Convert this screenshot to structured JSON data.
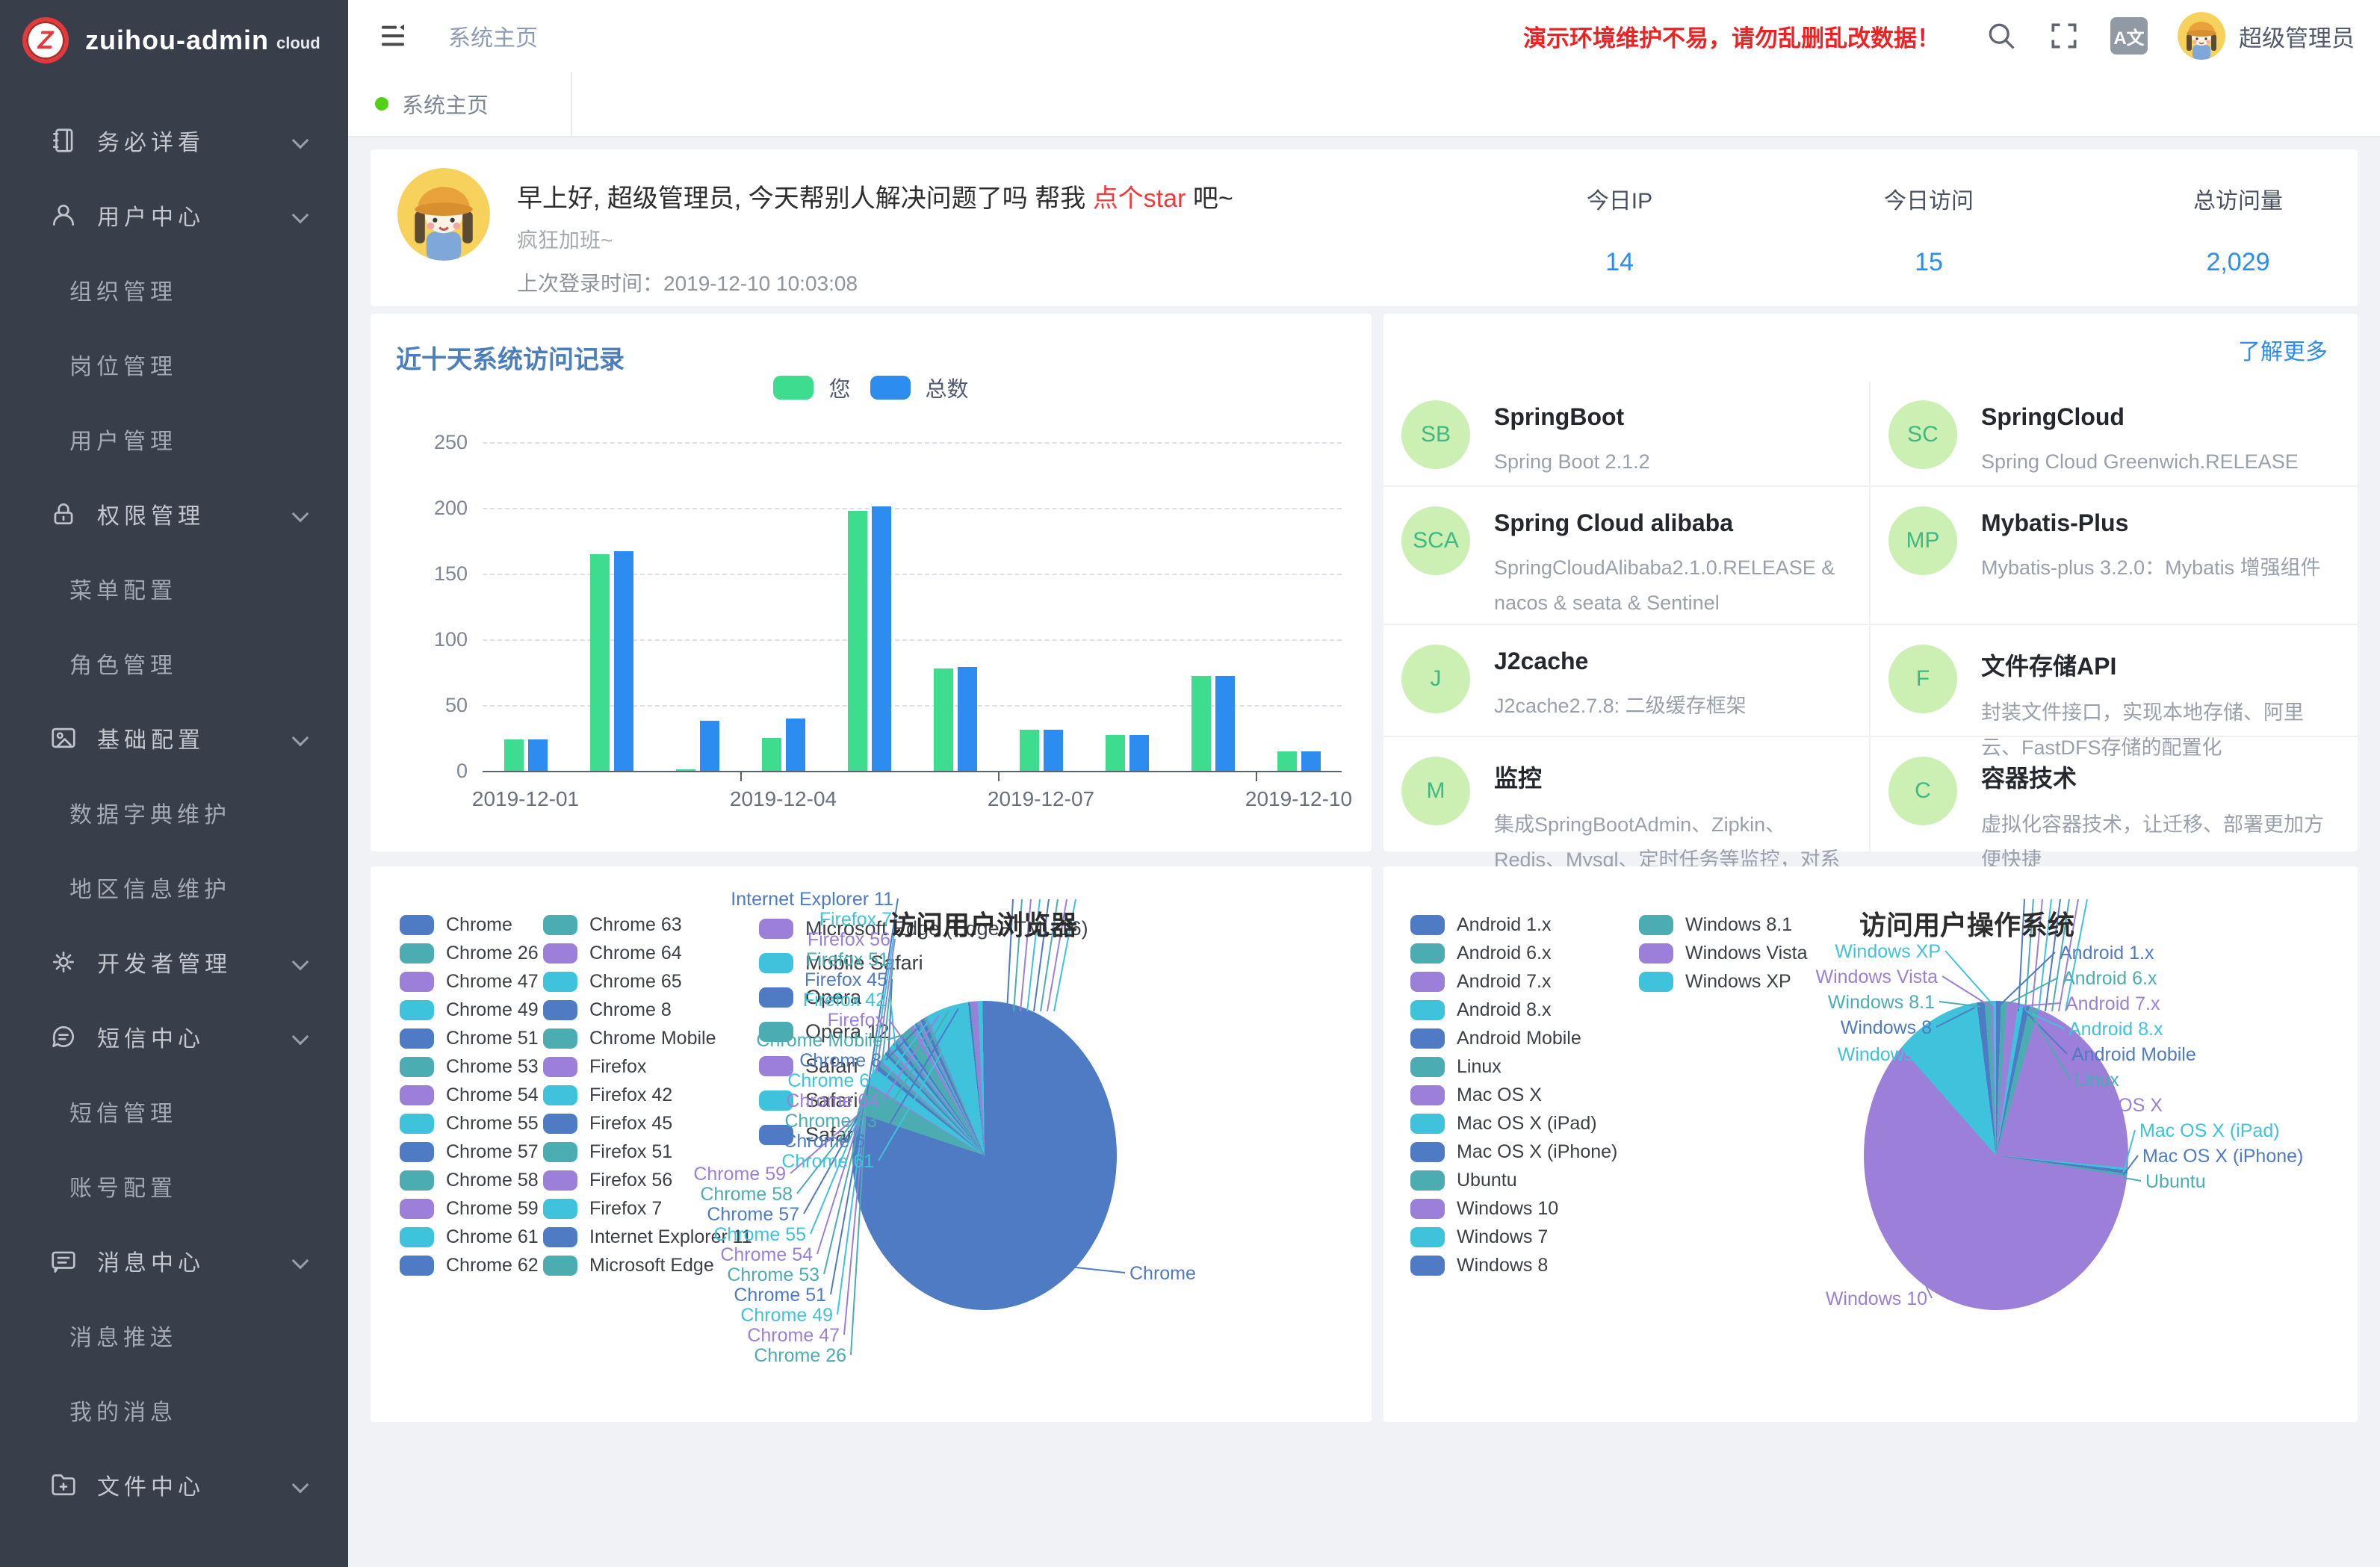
{
  "palette": [
    "#4e7bc4",
    "#4bacb2",
    "#9b7fd9",
    "#3fc3dc"
  ],
  "colors": {
    "accent_blue": "#2d8cf0",
    "bar_green": "#3ddc8e",
    "notice_red": "#ee2222",
    "chart_title_blue": "#4a7ebc",
    "sidebar_bg": "#383e4a",
    "page_bg": "#f0f2f5",
    "feature_avatar_bg": "#ccefb4",
    "feature_avatar_fg": "#41b883",
    "tab_dot_green": "#54d014"
  },
  "app": {
    "logo_letter": "Z",
    "name": "zuihou-admin",
    "suffix": "cloud"
  },
  "header": {
    "breadcrumb": "系统主页",
    "notice": "演示环境维护不易，请勿乱删乱改数据！",
    "translate": "A文",
    "username": "超级管理员"
  },
  "tab": {
    "label": "系统主页"
  },
  "sidebar": [
    {
      "type": "top",
      "icon": "notebook-icon",
      "label": "务必详看"
    },
    {
      "type": "top",
      "icon": "user-icon",
      "label": "用户中心"
    },
    {
      "type": "sub",
      "label": "组织管理"
    },
    {
      "type": "sub",
      "label": "岗位管理"
    },
    {
      "type": "sub",
      "label": "用户管理"
    },
    {
      "type": "top",
      "icon": "lock-icon",
      "label": "权限管理"
    },
    {
      "type": "sub",
      "label": "菜单配置"
    },
    {
      "type": "sub",
      "label": "角色管理"
    },
    {
      "type": "top",
      "icon": "picture-icon",
      "label": "基础配置"
    },
    {
      "type": "sub",
      "label": "数据字典维护"
    },
    {
      "type": "sub",
      "label": "地区信息维护"
    },
    {
      "type": "top",
      "icon": "gear-icon",
      "label": "开发者管理"
    },
    {
      "type": "top",
      "icon": "sms-icon",
      "label": "短信中心"
    },
    {
      "type": "sub",
      "label": "短信管理"
    },
    {
      "type": "sub",
      "label": "账号配置"
    },
    {
      "type": "top",
      "icon": "message-icon",
      "label": "消息中心"
    },
    {
      "type": "sub",
      "label": "消息推送"
    },
    {
      "type": "sub",
      "label": "我的消息"
    },
    {
      "type": "top",
      "icon": "folder-icon",
      "label": "文件中心"
    }
  ],
  "greeting": {
    "title_prefix": "早上好, 超级管理员, 今天帮别人解决问题了吗 帮我 ",
    "star_link": "点个star",
    "title_suffix": " 吧~",
    "subtitle": "疯狂加班~",
    "last_login_label": "上次登录时间：",
    "last_login_time": "2019-12-10 10:03:08"
  },
  "stats": [
    {
      "label": "今日IP",
      "value": "14"
    },
    {
      "label": "今日访问",
      "value": "15"
    },
    {
      "label": "总访问量",
      "value": "2,029"
    }
  ],
  "features": {
    "more": "了解更多",
    "items": [
      {
        "abbr": "SB",
        "title": "SpringBoot",
        "desc": "Spring Boot 2.1.2"
      },
      {
        "abbr": "SC",
        "title": "SpringCloud",
        "desc": "Spring Cloud Greenwich.RELEASE"
      },
      {
        "abbr": "SCA",
        "title": "Spring Cloud alibaba",
        "desc": "SpringCloudAlibaba2.1.0.RELEASE & nacos & seata & Sentinel"
      },
      {
        "abbr": "MP",
        "title": "Mybatis-Plus",
        "desc": "Mybatis-plus 3.2.0：Mybatis 增强组件"
      },
      {
        "abbr": "J",
        "title": "J2cache",
        "desc": "J2cache2.7.8: 二级缓存框架"
      },
      {
        "abbr": "F",
        "title": "文件存储API",
        "desc": "封装文件接口，实现本地存储、阿里云、FastDFS存储的配置化"
      },
      {
        "abbr": "M",
        "title": "监控",
        "desc": "集成SpringBootAdmin、Zipkin、Redis、Mysql、定时任务等监控，对系统进行全方位监控护航"
      },
      {
        "abbr": "C",
        "title": "容器技术",
        "desc": "虚拟化容器技术，让迁移、部署更加方便快捷"
      }
    ]
  },
  "chart_data": [
    {
      "type": "bar",
      "title": "近十天系统访问记录",
      "legend": [
        "您",
        "总数"
      ],
      "legend_position": "top-center",
      "grid": true,
      "categories": [
        "2019-12-01",
        "2019-12-02",
        "2019-12-03",
        "2019-12-04",
        "2019-12-05",
        "2019-12-06",
        "2019-12-07",
        "2019-12-08",
        "2019-12-09",
        "2019-12-10"
      ],
      "series": [
        {
          "name": "您",
          "color": "#3ddc8e",
          "values": [
            24,
            165,
            1,
            25,
            198,
            78,
            31,
            27,
            72,
            15
          ]
        },
        {
          "name": "总数",
          "color": "#2d8cf0",
          "values": [
            24,
            167,
            38,
            40,
            201,
            79,
            31,
            27,
            72,
            15
          ]
        }
      ],
      "ylim": [
        0,
        250
      ],
      "yticks": [
        0,
        50,
        100,
        150,
        200,
        250
      ],
      "xtick_labels": [
        "2019-12-01",
        "2019-12-04",
        "2019-12-07",
        "2019-12-10"
      ]
    },
    {
      "type": "pie",
      "title": "访问用户浏览器",
      "legend_position": "left",
      "items": [
        {
          "name": "Chrome",
          "value": 79.5
        },
        {
          "name": "Chrome 26",
          "value": 3.5
        },
        {
          "name": "Chrome 47",
          "value": 0.2
        },
        {
          "name": "Chrome 49",
          "value": 1.8
        },
        {
          "name": "Chrome 51",
          "value": 0.5
        },
        {
          "name": "Chrome 53",
          "value": 0.4
        },
        {
          "name": "Chrome 54",
          "value": 0.2
        },
        {
          "name": "Chrome 55",
          "value": 0.8
        },
        {
          "name": "Chrome 57",
          "value": 0.3
        },
        {
          "name": "Chrome 58",
          "value": 0.4
        },
        {
          "name": "Chrome 59",
          "value": 0.2
        },
        {
          "name": "Chrome 61",
          "value": 0.5
        },
        {
          "name": "Chrome 62",
          "value": 0.4
        },
        {
          "name": "Chrome 63",
          "value": 0.3
        },
        {
          "name": "Chrome 64",
          "value": 0.2
        },
        {
          "name": "Chrome 65",
          "value": 0.2
        },
        {
          "name": "Chrome 8",
          "value": 0.3
        },
        {
          "name": "Chrome Mobile",
          "value": 1.2
        },
        {
          "name": "Firefox",
          "value": 0.4
        },
        {
          "name": "Firefox 42",
          "value": 0.2
        },
        {
          "name": "Firefox 45",
          "value": 0.2
        },
        {
          "name": "Firefox 51",
          "value": 0.2
        },
        {
          "name": "Firefox 56",
          "value": 0.2
        },
        {
          "name": "Firefox 7",
          "value": 0.1
        },
        {
          "name": "Internet Explorer 11",
          "value": 0.4
        },
        {
          "name": "Microsoft Edge",
          "value": 0.3
        },
        {
          "name": "Microsoft Edge (EdgeHTML 16)",
          "value": 0.1
        },
        {
          "name": "Mobile Safari",
          "value": 4.5
        },
        {
          "name": "Opera",
          "value": 0.2
        },
        {
          "name": "Opera 12",
          "value": 0.1
        },
        {
          "name": "Safari",
          "value": 0.7
        },
        {
          "name": "Safari 11",
          "value": 0.5
        },
        {
          "name": "Safari 9",
          "value": 0.2
        }
      ],
      "callouts": {
        "upper_left": [
          "Internet Explorer 11",
          "Firefox 7",
          "Firefox 56",
          "Firefox 51",
          "Firefox 45",
          "Firefox 42",
          "Firefox",
          "Chrome Mobile",
          "Chrome 8",
          "Chrome 65",
          "Chrome 64",
          "Chrome 63",
          "Chrome 62",
          "Chrome 61"
        ],
        "lower_left": [
          "Chrome 59",
          "Chrome 58",
          "Chrome 57",
          "Chrome 55",
          "Chrome 54",
          "Chrome 53",
          "Chrome 51",
          "Chrome 49",
          "Chrome 47",
          "Chrome 26"
        ],
        "right": [
          "Chrome"
        ]
      }
    },
    {
      "type": "pie",
      "title": "访问用户操作系统",
      "legend_position": "left",
      "items": [
        {
          "name": "Android 1.x",
          "value": 0.5
        },
        {
          "name": "Android 6.x",
          "value": 0.6
        },
        {
          "name": "Android 7.x",
          "value": 1.2
        },
        {
          "name": "Android 8.x",
          "value": 0.6
        },
        {
          "name": "Android Mobile",
          "value": 0.6
        },
        {
          "name": "Linux",
          "value": 1.0
        },
        {
          "name": "Mac OS X",
          "value": 22.0
        },
        {
          "name": "Mac OS X (iPad)",
          "value": 0.3
        },
        {
          "name": "Mac OS X (iPhone)",
          "value": 0.4
        },
        {
          "name": "Ubuntu",
          "value": 0.3
        },
        {
          "name": "Windows 10",
          "value": 61.0
        },
        {
          "name": "Windows 7",
          "value": 9.5
        },
        {
          "name": "Windows 8",
          "value": 0.8
        },
        {
          "name": "Windows 8.1",
          "value": 0.6
        },
        {
          "name": "Windows Vista",
          "value": 0.3
        },
        {
          "name": "Windows XP",
          "value": 0.3
        }
      ],
      "callouts": {
        "upper_left": [
          "Windows XP",
          "Windows Vista",
          "Windows 8.1",
          "Windows 8",
          "Windows 7"
        ],
        "lower_left": [
          "Windows 10"
        ],
        "right": [
          "Android 1.x",
          "Android 6.x",
          "Android 7.x",
          "Android 8.x",
          "Android Mobile",
          "Linux",
          "Mac OS X"
        ],
        "lower_right": [
          "Mac OS X (iPad)",
          "Mac OS X (iPhone)",
          "Ubuntu"
        ]
      }
    }
  ]
}
